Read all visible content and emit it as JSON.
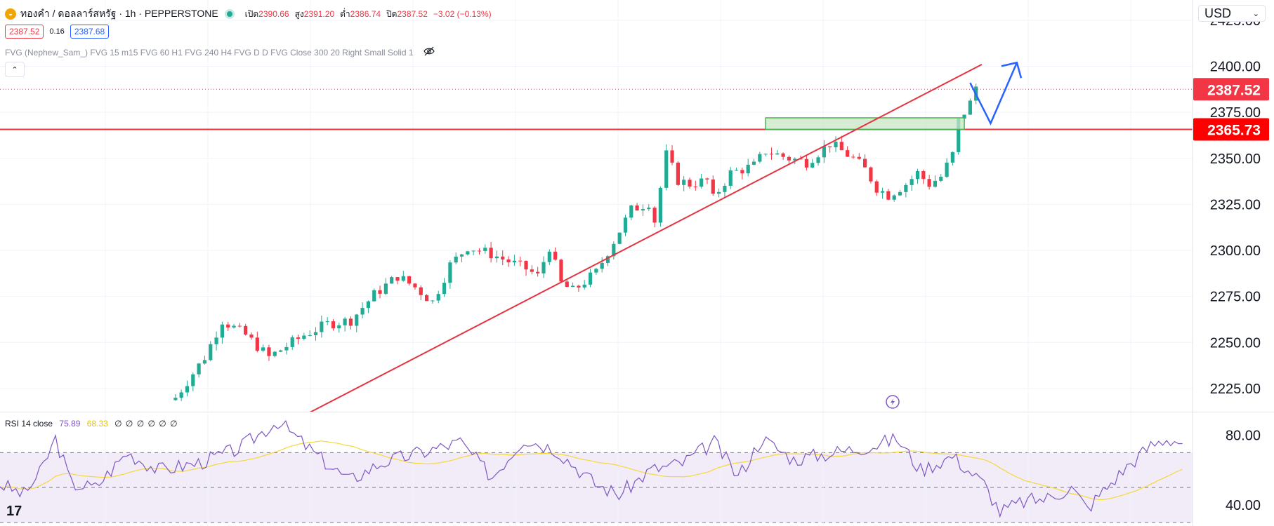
{
  "header": {
    "symbol_title": "ทองคำ / ดอลลาร์สหรัฐ · 1h · PEPPERSTONE",
    "ohlc": [
      {
        "label": "เปิด",
        "value": "2390.66"
      },
      {
        "label": "สูง",
        "value": "2391.20"
      },
      {
        "label": "ต่ำ",
        "value": "2386.74"
      },
      {
        "label": "ปิด",
        "value": "2387.52"
      },
      {
        "label": "",
        "value": "−3.02 (−0.13%)"
      }
    ],
    "bid": "2387.52",
    "spread": "0.16",
    "ask": "2387.68",
    "indicator_text": "FVG (Nephew_Sam_) FVG 15 m15 FVG 60 H1 FVG 240 H4 FVG D D FVG Close 300 20 Right Small Solid 1",
    "collapse_glyph": "⌃"
  },
  "currency": {
    "label": "USD",
    "chevron": "⌄"
  },
  "rsi_legend": {
    "name": "RSI 14 close",
    "rsi": "75.89",
    "ma": "68.33",
    "extra": "∅ ∅ ∅ ∅ ∅ ∅"
  },
  "branding": {
    "logo_text": "17"
  },
  "colors": {
    "up": "#22ab94",
    "down": "#f23645",
    "trend": "#e5333f",
    "arrow": "#2962ff",
    "zone_fill": "#c8e6c4",
    "zone_border": "#4caf50",
    "rsi": "#7e57c2",
    "rsi_ma": "#f5d83b",
    "rsi_band": "#ede7f6"
  },
  "chart_data": [
    {
      "type": "candlestick",
      "title": "ทองคำ / ดอลลาร์สหรัฐ · 1h · PEPPERSTONE",
      "x_range": [
        0,
        150
      ],
      "ylim": [
        2212,
        2436
      ],
      "y_ticks": [
        "2425.00",
        "2400.00",
        "2375.00",
        "2350.00",
        "2325.00",
        "2300.00",
        "2275.00",
        "2250.00",
        "2225.00"
      ],
      "last_price_label": "2387.52",
      "horizontal_line_label": "2365.73",
      "price_line": {
        "value": 2387.52,
        "style": "dotted"
      },
      "horizontal_line": {
        "value": 2365.73
      },
      "anchors": [
        [
          0,
          2204
        ],
        [
          12,
          2220
        ],
        [
          17,
          2242
        ],
        [
          20,
          2262
        ],
        [
          24,
          2254
        ],
        [
          28,
          2242
        ],
        [
          34,
          2254
        ],
        [
          38,
          2260
        ],
        [
          42,
          2262
        ],
        [
          46,
          2276
        ],
        [
          50,
          2286
        ],
        [
          53,
          2280
        ],
        [
          56,
          2272
        ],
        [
          59,
          2292
        ],
        [
          62,
          2302
        ],
        [
          66,
          2298
        ],
        [
          69,
          2294
        ],
        [
          72,
          2290
        ],
        [
          74,
          2286
        ],
        [
          76,
          2302
        ],
        [
          78,
          2282
        ],
        [
          80,
          2278
        ],
        [
          84,
          2288
        ],
        [
          87,
          2305
        ],
        [
          90,
          2322
        ],
        [
          93,
          2326
        ],
        [
          94,
          2316
        ],
        [
          96,
          2352
        ],
        [
          98,
          2338
        ],
        [
          100,
          2336
        ],
        [
          103,
          2338
        ],
        [
          104,
          2328
        ],
        [
          107,
          2342
        ],
        [
          111,
          2346
        ],
        [
          113,
          2354
        ],
        [
          117,
          2350
        ],
        [
          120,
          2348
        ],
        [
          124,
          2358
        ],
        [
          128,
          2350
        ],
        [
          130,
          2344
        ],
        [
          132,
          2334
        ],
        [
          134,
          2330
        ],
        [
          137,
          2336
        ],
        [
          139,
          2342
        ],
        [
          141,
          2336
        ],
        [
          143,
          2340
        ],
        [
          145,
          2352
        ],
        [
          146,
          2370
        ],
        [
          148,
          2380
        ],
        [
          149,
          2389
        ]
      ],
      "trendline": {
        "from": [
          35,
          2212
        ],
        "to": [
          150,
          2401
        ]
      },
      "zone": {
        "x": [
          113,
          147
        ],
        "y": [
          2365.73,
          2372
        ]
      },
      "projection_arrow": [
        [
          148,
          2391
        ],
        [
          151.5,
          2369
        ],
        [
          156,
          2402
        ]
      ],
      "arrow_head_point": [
        156,
        2402
      ]
    },
    {
      "type": "line",
      "title": "RSI 14 close",
      "ylim": [
        28,
        93
      ],
      "y_ticks": [
        "80.00",
        "40.00"
      ],
      "levels": [
        70,
        50,
        30
      ],
      "series": [
        {
          "name": "RSI 14 close",
          "last": 75.89
        },
        {
          "name": "",
          "last": 68.33
        }
      ],
      "anchors": [
        [
          0,
          52
        ],
        [
          3,
          46
        ],
        [
          5,
          58
        ],
        [
          7,
          78
        ],
        [
          9,
          52
        ],
        [
          12,
          50
        ],
        [
          16,
          70
        ],
        [
          20,
          60
        ],
        [
          25,
          64
        ],
        [
          30,
          72
        ],
        [
          35,
          88
        ],
        [
          40,
          68
        ],
        [
          44,
          54
        ],
        [
          48,
          64
        ],
        [
          53,
          70
        ],
        [
          58,
          76
        ],
        [
          62,
          56
        ],
        [
          66,
          78
        ],
        [
          70,
          72
        ],
        [
          75,
          52
        ],
        [
          78,
          46
        ],
        [
          82,
          60
        ],
        [
          86,
          64
        ],
        [
          90,
          76
        ],
        [
          93,
          56
        ],
        [
          96,
          78
        ],
        [
          100,
          66
        ],
        [
          105,
          70
        ],
        [
          110,
          74
        ],
        [
          113,
          78
        ],
        [
          116,
          60
        ],
        [
          120,
          68
        ],
        [
          124,
          52
        ],
        [
          126,
          36
        ],
        [
          129,
          42
        ],
        [
          132,
          44
        ],
        [
          135,
          50
        ],
        [
          137,
          38
        ],
        [
          139,
          48
        ],
        [
          142,
          62
        ],
        [
          145,
          74
        ],
        [
          147,
          78
        ],
        [
          149,
          76
        ]
      ]
    }
  ]
}
